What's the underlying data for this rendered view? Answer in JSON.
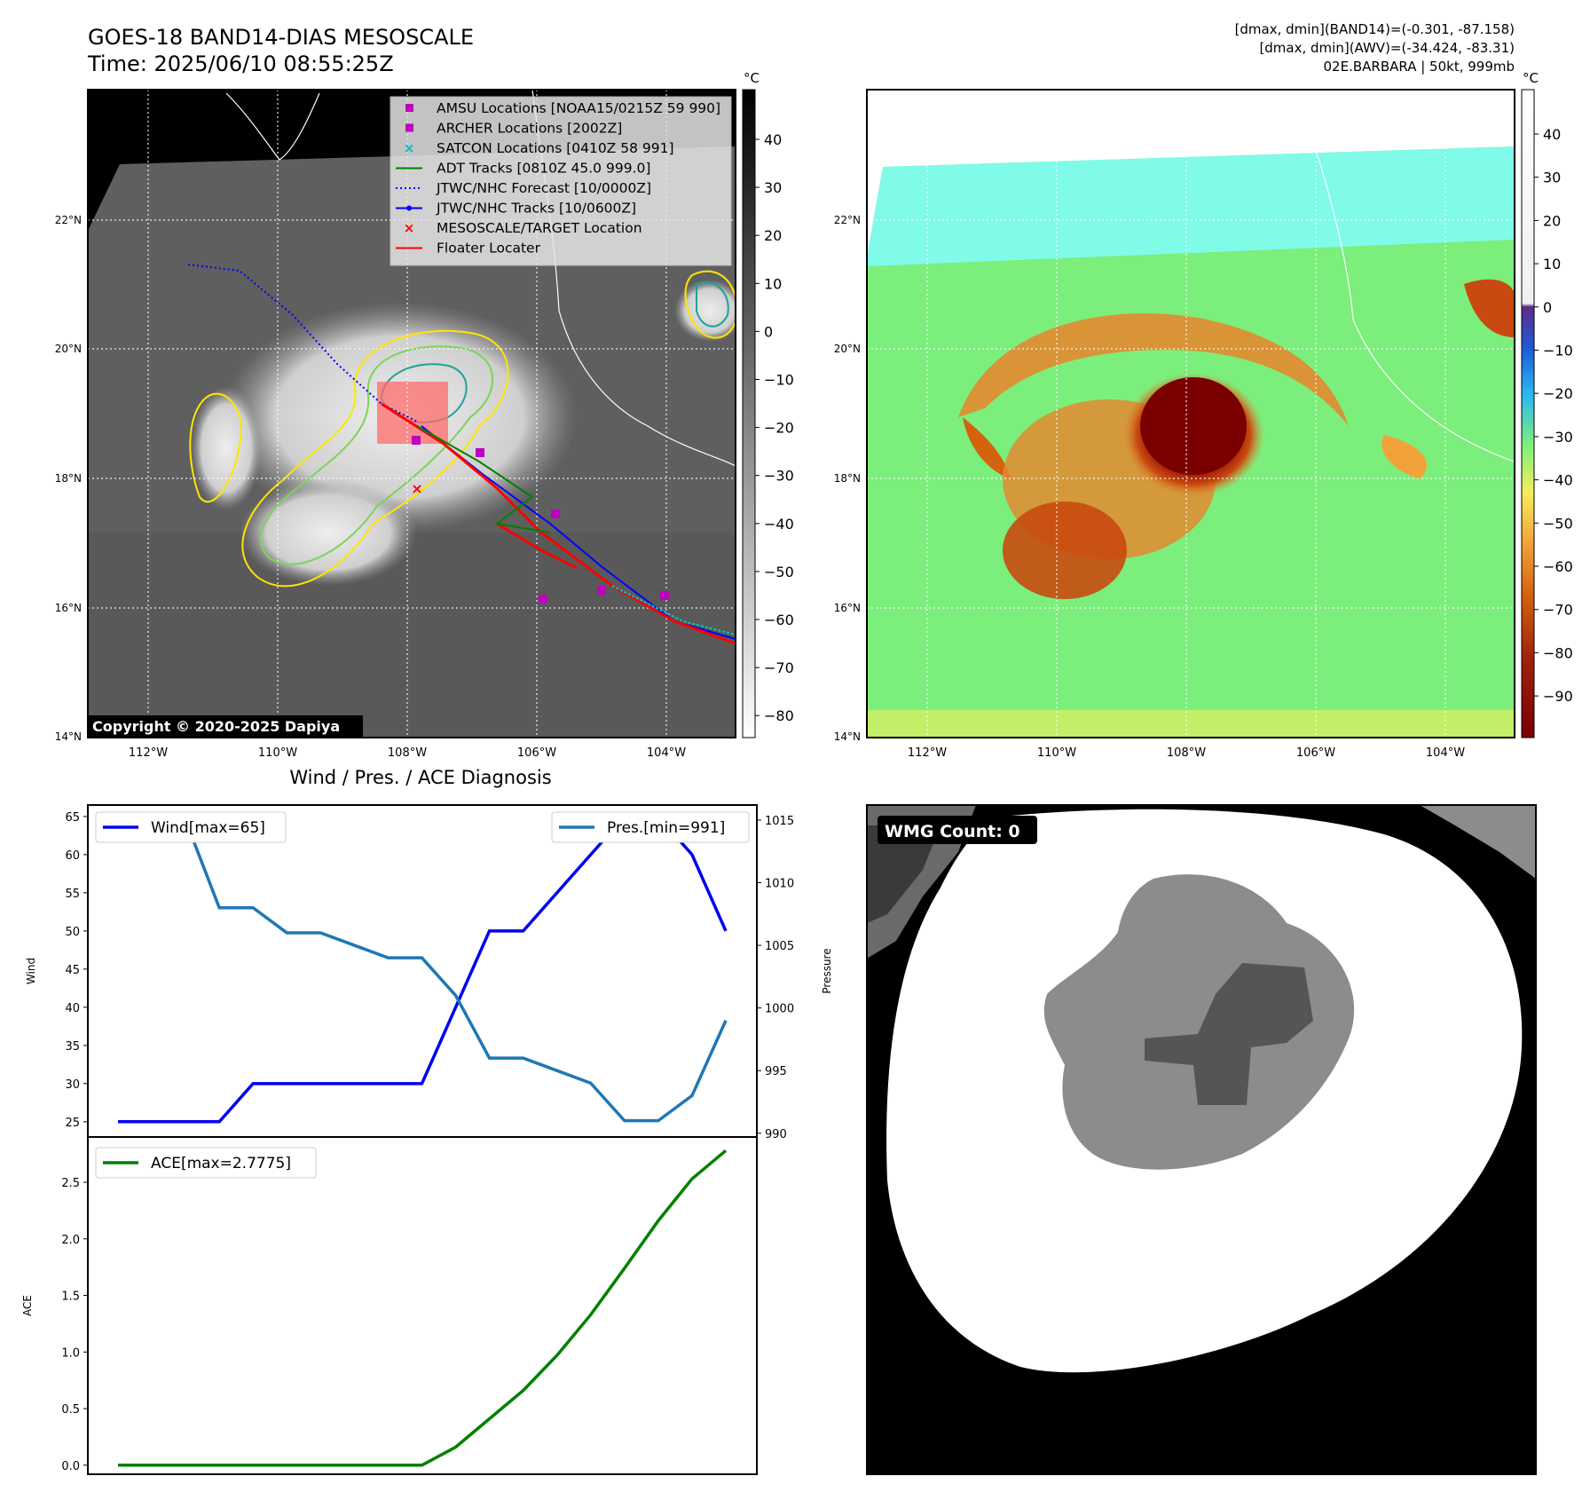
{
  "header": {
    "title": "GOES-18 BAND14-DIAS MESOSCALE",
    "time": "Time: 2025/06/10 08:55:25Z",
    "info_line1": "[dmax, dmin](BAND14)=(-0.301, -87.158)",
    "info_line2": "[dmax, dmin](AWV)=(-34.424, -83.31)",
    "info_line3": "02E.BARBARA | 50kt, 999mb"
  },
  "map": {
    "lon_labels": [
      "112°W",
      "110°W",
      "108°W",
      "106°W",
      "104°W"
    ],
    "lat_labels": [
      "22°N",
      "20°N",
      "18°N",
      "16°N",
      "14°N"
    ],
    "copyright": "Copyright © 2020-2025 Dapiya"
  },
  "ir_colorbar": {
    "unit": "°C",
    "ticks": [
      "40",
      "30",
      "20",
      "10",
      "0",
      "−10",
      "−20",
      "−30",
      "−40",
      "−50",
      "−60",
      "−70",
      "−80"
    ]
  },
  "awv_colorbar": {
    "unit": "°C",
    "ticks": [
      "40",
      "30",
      "20",
      "10",
      "0",
      "−10",
      "−20",
      "−30",
      "−40",
      "−50",
      "−60",
      "−70",
      "−80",
      "−90"
    ]
  },
  "legend": {
    "items": [
      {
        "label": "AMSU Locations [NOAA15/0215Z 59 990]",
        "color": "#bf00bf",
        "marker": "square"
      },
      {
        "label": "ARCHER Locations [2002Z]",
        "color": "#bf00bf",
        "marker": "square"
      },
      {
        "label": "SATCON Locations [0410Z 58 991]",
        "color": "#00bfbf",
        "marker": "x"
      },
      {
        "label": "ADT Tracks [0810Z 45.0 999.0]",
        "color": "#008000",
        "marker": "line"
      },
      {
        "label": "JTWC/NHC Forecast [10/0000Z]",
        "color": "#0000ff",
        "marker": "dotted"
      },
      {
        "label": "JTWC/NHC Tracks [10/0600Z]",
        "color": "#0000ff",
        "marker": "line-dot"
      },
      {
        "label": "MESOSCALE/TARGET Location",
        "color": "#ff0000",
        "marker": "x"
      },
      {
        "label": "Floater Locater",
        "color": "#ff0000",
        "marker": "line"
      }
    ]
  },
  "wmg": {
    "label": "WMG Count: 0"
  },
  "chart_data": [
    {
      "type": "line",
      "title": "Wind / Pres. / ACE Diagnosis",
      "ylabel": "Wind",
      "y2label": "Pressure",
      "ylim": [
        23.0,
        66.5
      ],
      "y2lim": [
        989.7,
        1016.2
      ],
      "yticks": [
        25,
        30,
        35,
        40,
        45,
        50,
        55,
        60,
        65
      ],
      "y2ticks": [
        990,
        995,
        1000,
        1005,
        1010,
        1015
      ],
      "x": [
        0,
        1,
        2,
        3,
        4,
        5,
        6,
        7,
        8,
        9,
        10,
        11,
        12,
        13,
        14,
        15,
        16,
        17,
        18
      ],
      "series": [
        {
          "name": "Wind[max=65]",
          "color": "#0000ee",
          "axis": "left",
          "values": [
            25,
            25,
            25,
            25,
            30,
            30,
            30,
            30,
            30,
            30,
            40,
            50,
            50,
            55,
            60,
            65,
            65,
            60,
            50
          ]
        },
        {
          "name": "Pres.[min=991]",
          "color": "#1f77b4",
          "axis": "right",
          "values": [
            1015,
            1015,
            1015,
            1008,
            1008,
            1006,
            1006,
            1005,
            1004,
            1004,
            1001,
            996,
            996,
            995,
            994,
            991,
            991,
            993,
            999
          ]
        }
      ]
    },
    {
      "type": "line",
      "ylabel": "ACE",
      "ylim": [
        -0.08,
        2.9
      ],
      "yticks": [
        "0.0",
        "0.5",
        "1.0",
        "1.5",
        "2.0",
        "2.5"
      ],
      "x": [
        0,
        1,
        2,
        3,
        4,
        5,
        6,
        7,
        8,
        9,
        10,
        11,
        12,
        13,
        14,
        15,
        16,
        17,
        18
      ],
      "series": [
        {
          "name": "ACE[max=2.7775]",
          "color": "#008000",
          "axis": "left",
          "values": [
            0,
            0,
            0,
            0,
            0,
            0,
            0,
            0,
            0,
            0,
            0.16,
            0.41,
            0.66,
            0.97,
            1.33,
            1.74,
            2.16,
            2.53,
            2.78
          ]
        }
      ]
    }
  ]
}
